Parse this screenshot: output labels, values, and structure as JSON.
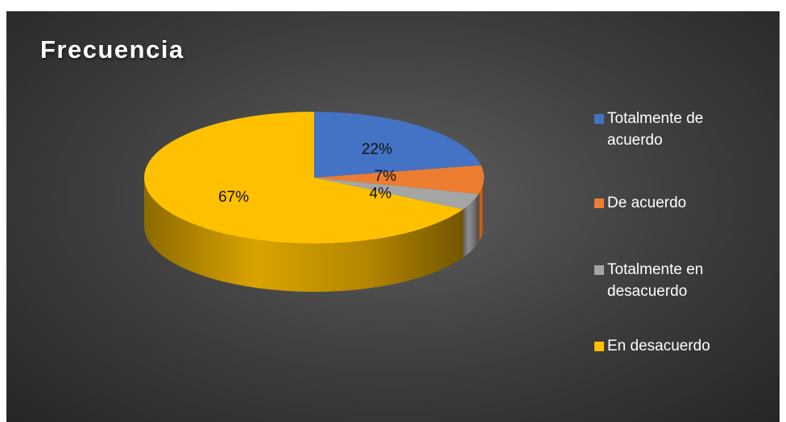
{
  "chart_data": {
    "type": "pie",
    "title": "Frecuencia",
    "categories": [
      "Totalmente de acuerdo",
      "De acuerdo",
      "Totalmente en desacuerdo",
      "En desacuerdo"
    ],
    "values": [
      22,
      7,
      4,
      67
    ],
    "data_labels": [
      "22%",
      "7%",
      "4%",
      "67%"
    ],
    "colors": [
      "#4472C4",
      "#ED7D31",
      "#A5A5A5",
      "#FFC000"
    ],
    "legend_position": "right",
    "style": "3d"
  }
}
